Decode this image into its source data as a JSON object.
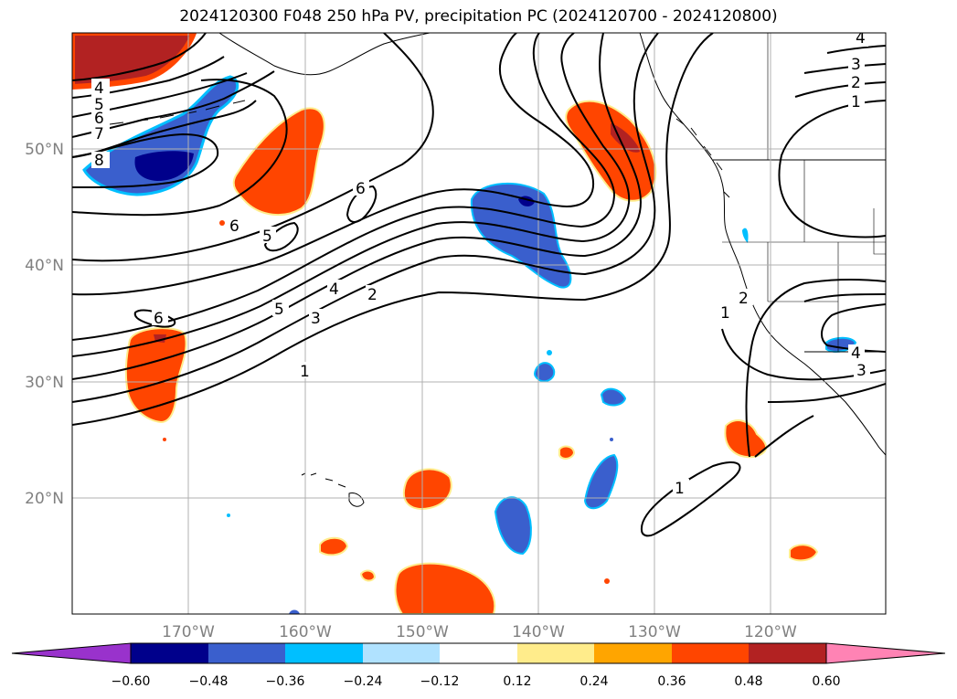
{
  "title": "2024120300 F048 250 hPa PV, precipitation PC (2024120700 - 2024120800)",
  "lat_labels": [
    "50°N",
    "40°N",
    "30°N",
    "20°N"
  ],
  "lon_labels": [
    "170°W",
    "160°W",
    "150°W",
    "140°W",
    "130°W",
    "120°W"
  ],
  "contour_labels": [
    "4",
    "5",
    "6",
    "7",
    "8",
    "6",
    "6",
    "5",
    "5",
    "4",
    "3",
    "2",
    "1",
    "6",
    "4",
    "3",
    "2",
    "1",
    "1",
    "2",
    "4",
    "3",
    "1"
  ],
  "colorbar": {
    "ticks": [
      "−0.60",
      "−0.48",
      "−0.36",
      "−0.24",
      "−0.12",
      "0.12",
      "0.24",
      "0.36",
      "0.48",
      "0.60"
    ],
    "colors": [
      "#9932cc",
      "#00008b",
      "#3a5fcd",
      "#00bfff",
      "#b0e2ff",
      "#ffffff",
      "#ffec8b",
      "#ffa500",
      "#ff4500",
      "#b22222",
      "#ff83b4"
    ]
  },
  "colors": {
    "neg_strong": "#00008b",
    "neg_mid": "#3a5fcd",
    "neg_light": "#00bfff",
    "pos_mid": "#ff4500",
    "pos_strong": "#b22222",
    "pos_edge": "#ffec8b"
  }
}
